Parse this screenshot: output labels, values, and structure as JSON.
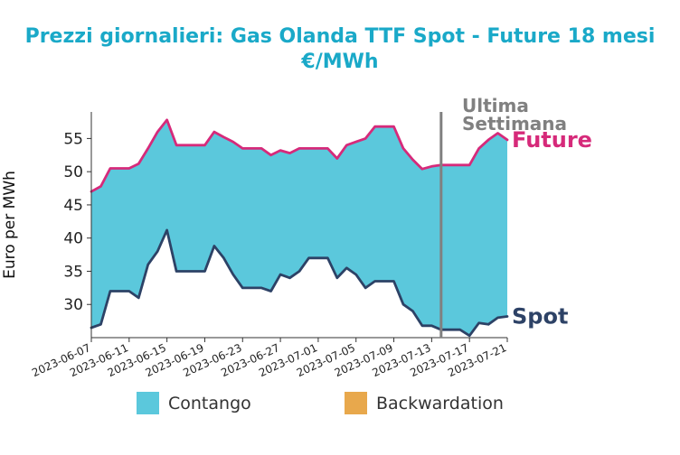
{
  "chart_data": {
    "type": "area",
    "title_line1": "Prezzi giornalieri: Gas Olanda TTF Spot - Future 18 mesi",
    "title_line2": "€/MWh",
    "ylabel": "Euro per MWh",
    "ylim": [
      25,
      59
    ],
    "yticks": [
      30,
      35,
      40,
      45,
      50,
      55
    ],
    "x_range": [
      "2023-06-07",
      "2023-07-21"
    ],
    "x_tick_labels": [
      "2023-06-07",
      "2023-06-11",
      "2023-06-15",
      "2023-06-19",
      "2023-06-23",
      "2023-06-27",
      "2023-07-01",
      "2023-07-05",
      "2023-07-09",
      "2023-07-13",
      "2023-07-17",
      "2023-07-21"
    ],
    "annotation": {
      "line1": "Ultima",
      "line2": "Settimana",
      "x": "2023-07-14"
    },
    "series": [
      {
        "name": "Future",
        "color": "#d62a7a",
        "points": [
          [
            "2023-06-07",
            47.0
          ],
          [
            "2023-06-08",
            47.8
          ],
          [
            "2023-06-09",
            50.5
          ],
          [
            "2023-06-10",
            50.5
          ],
          [
            "2023-06-11",
            50.5
          ],
          [
            "2023-06-12",
            51.2
          ],
          [
            "2023-06-13",
            53.5
          ],
          [
            "2023-06-14",
            56.0
          ],
          [
            "2023-06-15",
            57.8
          ],
          [
            "2023-06-16",
            54.0
          ],
          [
            "2023-06-17",
            54.0
          ],
          [
            "2023-06-18",
            54.0
          ],
          [
            "2023-06-19",
            54.0
          ],
          [
            "2023-06-20",
            56.0
          ],
          [
            "2023-06-21",
            55.2
          ],
          [
            "2023-06-22",
            54.5
          ],
          [
            "2023-06-23",
            53.5
          ],
          [
            "2023-06-24",
            53.5
          ],
          [
            "2023-06-25",
            53.5
          ],
          [
            "2023-06-26",
            52.5
          ],
          [
            "2023-06-27",
            53.2
          ],
          [
            "2023-06-28",
            52.8
          ],
          [
            "2023-06-29",
            53.5
          ],
          [
            "2023-06-30",
            53.5
          ],
          [
            "2023-07-01",
            53.5
          ],
          [
            "2023-07-02",
            53.5
          ],
          [
            "2023-07-03",
            52.0
          ],
          [
            "2023-07-04",
            54.0
          ],
          [
            "2023-07-05",
            54.5
          ],
          [
            "2023-07-06",
            55.0
          ],
          [
            "2023-07-07",
            56.8
          ],
          [
            "2023-07-08",
            56.8
          ],
          [
            "2023-07-09",
            56.8
          ],
          [
            "2023-07-10",
            53.5
          ],
          [
            "2023-07-11",
            51.8
          ],
          [
            "2023-07-12",
            50.4
          ],
          [
            "2023-07-13",
            50.8
          ],
          [
            "2023-07-14",
            51.0
          ],
          [
            "2023-07-15",
            51.0
          ],
          [
            "2023-07-16",
            51.0
          ],
          [
            "2023-07-17",
            51.0
          ],
          [
            "2023-07-18",
            53.5
          ],
          [
            "2023-07-19",
            54.8
          ],
          [
            "2023-07-20",
            55.8
          ],
          [
            "2023-07-21",
            54.8
          ]
        ]
      },
      {
        "name": "Spot",
        "color": "#2d4266",
        "points": [
          [
            "2023-06-07",
            26.5
          ],
          [
            "2023-06-08",
            27.0
          ],
          [
            "2023-06-09",
            32.0
          ],
          [
            "2023-06-10",
            32.0
          ],
          [
            "2023-06-11",
            32.0
          ],
          [
            "2023-06-12",
            31.0
          ],
          [
            "2023-06-13",
            36.0
          ],
          [
            "2023-06-14",
            38.0
          ],
          [
            "2023-06-15",
            41.2
          ],
          [
            "2023-06-16",
            35.0
          ],
          [
            "2023-06-17",
            35.0
          ],
          [
            "2023-06-18",
            35.0
          ],
          [
            "2023-06-19",
            35.0
          ],
          [
            "2023-06-20",
            38.8
          ],
          [
            "2023-06-21",
            37.0
          ],
          [
            "2023-06-22",
            34.5
          ],
          [
            "2023-06-23",
            32.5
          ],
          [
            "2023-06-24",
            32.5
          ],
          [
            "2023-06-25",
            32.5
          ],
          [
            "2023-06-26",
            32.0
          ],
          [
            "2023-06-27",
            34.5
          ],
          [
            "2023-06-28",
            34.0
          ],
          [
            "2023-06-29",
            35.0
          ],
          [
            "2023-06-30",
            37.0
          ],
          [
            "2023-07-01",
            37.0
          ],
          [
            "2023-07-02",
            37.0
          ],
          [
            "2023-07-03",
            34.0
          ],
          [
            "2023-07-04",
            35.5
          ],
          [
            "2023-07-05",
            34.5
          ],
          [
            "2023-07-06",
            32.5
          ],
          [
            "2023-07-07",
            33.5
          ],
          [
            "2023-07-08",
            33.5
          ],
          [
            "2023-07-09",
            33.5
          ],
          [
            "2023-07-10",
            30.0
          ],
          [
            "2023-07-11",
            29.0
          ],
          [
            "2023-07-12",
            26.8
          ],
          [
            "2023-07-13",
            26.8
          ],
          [
            "2023-07-14",
            26.2
          ],
          [
            "2023-07-15",
            26.2
          ],
          [
            "2023-07-16",
            26.2
          ],
          [
            "2023-07-17",
            25.3
          ],
          [
            "2023-07-18",
            27.2
          ],
          [
            "2023-07-19",
            27.0
          ],
          [
            "2023-07-20",
            28.0
          ],
          [
            "2023-07-21",
            28.2
          ]
        ]
      }
    ],
    "legend": [
      {
        "label": "Contango",
        "color": "#5bc8dc"
      },
      {
        "label": "Backwardation",
        "color": "#e8a84c"
      }
    ],
    "legend_position": "bottom",
    "grid": false
  },
  "colors": {
    "title": "#1aa9c8",
    "fill": "#5bc8dc",
    "annotation_line": "#808080"
  }
}
